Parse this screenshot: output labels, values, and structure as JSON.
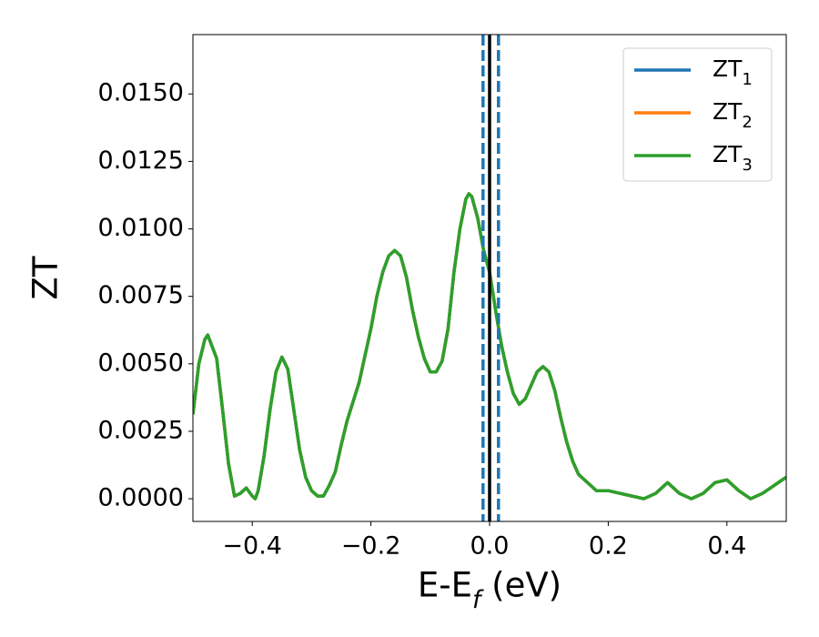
{
  "chart_data": {
    "type": "line",
    "xlabel": "E-E_f (eV)",
    "ylabel": "ZT",
    "x": [
      -0.5,
      -0.49,
      -0.48,
      -0.475,
      -0.46,
      -0.45,
      -0.44,
      -0.43,
      -0.42,
      -0.41,
      -0.4,
      -0.395,
      -0.39,
      -0.38,
      -0.37,
      -0.36,
      -0.35,
      -0.34,
      -0.33,
      -0.32,
      -0.31,
      -0.3,
      -0.29,
      -0.28,
      -0.27,
      -0.26,
      -0.25,
      -0.24,
      -0.23,
      -0.22,
      -0.21,
      -0.2,
      -0.19,
      -0.18,
      -0.17,
      -0.16,
      -0.15,
      -0.14,
      -0.13,
      -0.12,
      -0.11,
      -0.1,
      -0.09,
      -0.08,
      -0.07,
      -0.06,
      -0.05,
      -0.04,
      -0.035,
      -0.03,
      -0.02,
      -0.01,
      0,
      0.01,
      0.02,
      0.03,
      0.04,
      0.05,
      0.06,
      0.07,
      0.08,
      0.09,
      0.1,
      0.11,
      0.12,
      0.13,
      0.14,
      0.15,
      0.16,
      0.17,
      0.18,
      0.2,
      0.22,
      0.24,
      0.26,
      0.28,
      0.3,
      0.32,
      0.34,
      0.36,
      0.38,
      0.4,
      0.42,
      0.44,
      0.46,
      0.48,
      0.5
    ],
    "series": [
      {
        "name": "ZT_1",
        "color": "#1f77b4",
        "values": [
          0.00313,
          0.005,
          0.0059,
          0.00607,
          0.0052,
          0.0033,
          0.0013,
          0.0001,
          0.0002,
          0.0004,
          0.0001,
          0,
          0.0003,
          0.0016,
          0.0033,
          0.0047,
          0.00525,
          0.0048,
          0.0033,
          0.0018,
          0.0008,
          0.0003,
          0.0001,
          0.0001,
          0.0005,
          0.001,
          0.002,
          0.0029,
          0.0036,
          0.0043,
          0.0053,
          0.0063,
          0.0075,
          0.0084,
          0.009,
          0.0092,
          0.009,
          0.0082,
          0.007,
          0.006,
          0.0052,
          0.0047,
          0.0047,
          0.0051,
          0.0063,
          0.0084,
          0.01,
          0.0111,
          0.0113,
          0.0112,
          0.0104,
          0.0092,
          0.0084,
          0.007,
          0.0057,
          0.0047,
          0.0039,
          0.0035,
          0.0037,
          0.0042,
          0.0047,
          0.0049,
          0.0047,
          0.004,
          0.003,
          0.0021,
          0.0014,
          0.0009,
          0.0007,
          0.0005,
          0.0003,
          0.0003,
          0.0002,
          0.0001,
          0,
          0.0002,
          0.0006,
          0.0002,
          0,
          0.0002,
          0.0006,
          0.0007,
          0.0003,
          0,
          0.0002,
          0.0005,
          0.0008
        ]
      },
      {
        "name": "ZT_2",
        "color": "#ff7f0e",
        "values": [
          0.00313,
          0.005,
          0.0059,
          0.00607,
          0.0052,
          0.0033,
          0.0013,
          0.0001,
          0.0002,
          0.0004,
          0.0001,
          0,
          0.0003,
          0.0016,
          0.0033,
          0.0047,
          0.00525,
          0.0048,
          0.0033,
          0.0018,
          0.0008,
          0.0003,
          0.0001,
          0.0001,
          0.0005,
          0.001,
          0.002,
          0.0029,
          0.0036,
          0.0043,
          0.0053,
          0.0063,
          0.0075,
          0.0084,
          0.009,
          0.0092,
          0.009,
          0.0082,
          0.007,
          0.006,
          0.0052,
          0.0047,
          0.0047,
          0.0051,
          0.0063,
          0.0084,
          0.01,
          0.0111,
          0.0113,
          0.0112,
          0.0104,
          0.0092,
          0.0084,
          0.007,
          0.0057,
          0.0047,
          0.0039,
          0.0035,
          0.0037,
          0.0042,
          0.0047,
          0.0049,
          0.0047,
          0.004,
          0.003,
          0.0021,
          0.0014,
          0.0009,
          0.0007,
          0.0005,
          0.0003,
          0.0003,
          0.0002,
          0.0001,
          0,
          0.0002,
          0.0006,
          0.0002,
          0,
          0.0002,
          0.0006,
          0.0007,
          0.0003,
          0,
          0.0002,
          0.0005,
          0.0008
        ]
      },
      {
        "name": "ZT_3",
        "color": "#2ca02c",
        "values": [
          0.00313,
          0.005,
          0.0059,
          0.00607,
          0.0052,
          0.0033,
          0.0013,
          0.0001,
          0.0002,
          0.0004,
          0.0001,
          0,
          0.0003,
          0.0016,
          0.0033,
          0.0047,
          0.00525,
          0.0048,
          0.0033,
          0.0018,
          0.0008,
          0.0003,
          0.0001,
          0.0001,
          0.0005,
          0.001,
          0.002,
          0.0029,
          0.0036,
          0.0043,
          0.0053,
          0.0063,
          0.0075,
          0.0084,
          0.009,
          0.0092,
          0.009,
          0.0082,
          0.007,
          0.006,
          0.0052,
          0.0047,
          0.0047,
          0.0051,
          0.0063,
          0.0084,
          0.01,
          0.0111,
          0.0113,
          0.0112,
          0.0104,
          0.0092,
          0.0084,
          0.007,
          0.0057,
          0.0047,
          0.0039,
          0.0035,
          0.0037,
          0.0042,
          0.0047,
          0.0049,
          0.0047,
          0.004,
          0.003,
          0.0021,
          0.0014,
          0.0009,
          0.0007,
          0.0005,
          0.0003,
          0.0003,
          0.0002,
          0.0001,
          0,
          0.0002,
          0.0006,
          0.0002,
          0,
          0.0002,
          0.0006,
          0.0007,
          0.0003,
          0,
          0.0002,
          0.0005,
          0.0008
        ]
      }
    ],
    "vlines": [
      {
        "x": -0.011,
        "color": "#1f77b4",
        "style": "dashed"
      },
      {
        "x": 0.015,
        "color": "#1f77b4",
        "style": "dashed"
      },
      {
        "x": 0,
        "color": "#000000",
        "style": "solid"
      }
    ],
    "xlim": [
      -0.5,
      0.5
    ],
    "xticks": [
      {
        "value": -0.4,
        "label": "−0.4"
      },
      {
        "value": -0.2,
        "label": "−0.2"
      },
      {
        "value": 0,
        "label": "0.0"
      },
      0.2,
      0.4
    ],
    "ylim": [
      -0.00084,
      0.0172
    ],
    "yticks": [
      {
        "value": 0,
        "label": "0.0000"
      },
      {
        "value": 0.0025,
        "label": "0.0025"
      },
      {
        "value": 0.005,
        "label": "0.0050"
      },
      {
        "value": 0.0075,
        "label": "0.0075"
      },
      {
        "value": 0.01,
        "label": "0.0100"
      },
      {
        "value": 0.0125,
        "label": "0.0125"
      },
      {
        "value": 0.015,
        "label": "0.0150"
      }
    ],
    "grid": false,
    "legend": "upper right"
  }
}
